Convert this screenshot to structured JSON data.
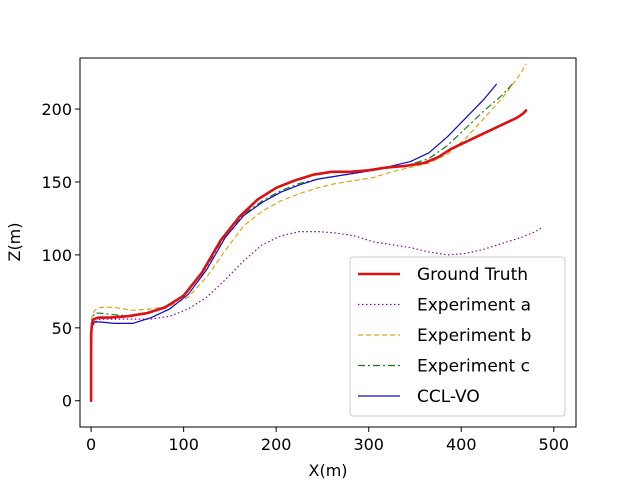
{
  "chart_data": {
    "type": "line",
    "title": "",
    "xlabel": "X(m)",
    "ylabel": "Z(m)",
    "xlim": [
      -12,
      524
    ],
    "ylim": [
      -18,
      235
    ],
    "xticks": [
      0,
      100,
      200,
      300,
      400,
      500
    ],
    "yticks": [
      0,
      50,
      100,
      150,
      200
    ],
    "grid": false,
    "legend_position": "lower-right",
    "series": [
      {
        "name": "Ground Truth",
        "color": "#dd1111",
        "style": "solid",
        "width": "thick",
        "x": [
          0,
          0,
          0,
          1,
          3,
          8,
          20,
          40,
          60,
          80,
          100,
          120,
          140,
          160,
          180,
          200,
          220,
          240,
          260,
          280,
          300,
          320,
          340,
          360,
          375,
          390,
          410,
          430,
          450,
          460,
          467,
          470
        ],
        "y": [
          0,
          20,
          45,
          53,
          56,
          57,
          57,
          58,
          60,
          64,
          72,
          88,
          110,
          126,
          138,
          146,
          151,
          155,
          157,
          157,
          158,
          160,
          161,
          163,
          167,
          173,
          179,
          185,
          191,
          194,
          197,
          199
        ]
      },
      {
        "name": "Experiment a",
        "color": "#8a00a8",
        "style": "dotted",
        "width": "thin",
        "x": [
          0,
          0,
          1,
          4,
          10,
          25,
          45,
          65,
          85,
          105,
          125,
          145,
          165,
          185,
          205,
          225,
          245,
          265,
          285,
          305,
          325,
          345,
          365,
          385,
          405,
          425,
          445,
          465,
          480,
          488
        ],
        "y": [
          0,
          30,
          50,
          54,
          56,
          56,
          56,
          56,
          58,
          63,
          71,
          83,
          96,
          107,
          113,
          116,
          116,
          115,
          113,
          109,
          107,
          105,
          102,
          100,
          101,
          104,
          108,
          112,
          116,
          119
        ]
      },
      {
        "name": "Experiment b",
        "color": "#e3a317",
        "style": "dashed",
        "width": "thin",
        "x": [
          0,
          0,
          1,
          4,
          10,
          25,
          45,
          65,
          85,
          105,
          125,
          145,
          165,
          185,
          205,
          225,
          245,
          265,
          285,
          305,
          325,
          345,
          365,
          385,
          405,
          425,
          445,
          465,
          470
        ],
        "y": [
          0,
          30,
          58,
          62,
          64,
          64,
          62,
          63,
          65,
          71,
          85,
          103,
          120,
          130,
          137,
          142,
          146,
          149,
          151,
          153,
          157,
          160,
          163,
          169,
          180,
          194,
          208,
          225,
          231
        ]
      },
      {
        "name": "Experiment c",
        "color": "#1a7a1a",
        "style": "dashdot",
        "width": "thin",
        "x": [
          0,
          0,
          1,
          4,
          10,
          25,
          45,
          65,
          85,
          105,
          125,
          145,
          165,
          185,
          205,
          225,
          245,
          265,
          285,
          305,
          325,
          345,
          365,
          385,
          405,
          425,
          445,
          455
        ],
        "y": [
          0,
          30,
          57,
          60,
          60,
          59,
          58,
          61,
          66,
          75,
          92,
          114,
          128,
          137,
          144,
          149,
          152,
          154,
          156,
          158,
          160,
          162,
          166,
          175,
          187,
          199,
          210,
          217
        ]
      },
      {
        "name": "CCL-VO",
        "color": "#0a0acc",
        "style": "solid",
        "width": "thin",
        "x": [
          0,
          0,
          1,
          4,
          10,
          25,
          45,
          65,
          85,
          105,
          125,
          145,
          165,
          185,
          205,
          225,
          245,
          265,
          285,
          305,
          325,
          345,
          365,
          385,
          405,
          425,
          438
        ],
        "y": [
          0,
          30,
          52,
          54,
          54,
          53,
          53,
          57,
          63,
          73,
          90,
          112,
          127,
          136,
          143,
          148,
          152,
          154,
          156,
          158,
          161,
          164,
          170,
          181,
          194,
          207,
          217
        ]
      }
    ]
  }
}
